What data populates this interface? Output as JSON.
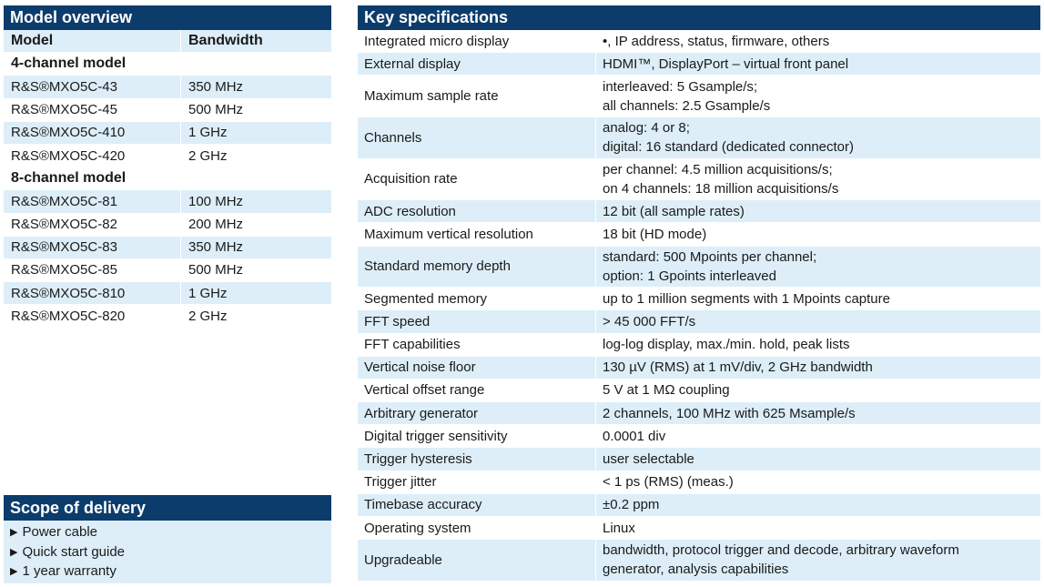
{
  "models": {
    "title": "Model overview",
    "col_model": "Model",
    "col_bandwidth": "Bandwidth",
    "group4": "4-channel model",
    "rows4": [
      {
        "model": "R&S®MXO5C-43",
        "bw": "350 MHz"
      },
      {
        "model": "R&S®MXO5C-45",
        "bw": "500 MHz"
      },
      {
        "model": "R&S®MXO5C-410",
        "bw": "1 GHz"
      },
      {
        "model": "R&S®MXO5C-420",
        "bw": "2 GHz"
      }
    ],
    "group8": "8-channel model",
    "rows8": [
      {
        "model": "R&S®MXO5C-81",
        "bw": "100 MHz"
      },
      {
        "model": "R&S®MXO5C-82",
        "bw": "200 MHz"
      },
      {
        "model": "R&S®MXO5C-83",
        "bw": "350 MHz"
      },
      {
        "model": "R&S®MXO5C-85",
        "bw": "500 MHz"
      },
      {
        "model": "R&S®MXO5C-810",
        "bw": "1 GHz"
      },
      {
        "model": "R&S®MXO5C-820",
        "bw": "2 GHz"
      }
    ]
  },
  "scope": {
    "title": "Scope of delivery",
    "items": [
      "Power cable",
      "Quick start guide",
      "1 year warranty"
    ]
  },
  "specs": {
    "title": "Key specifications",
    "rows": [
      {
        "k": "Integrated micro display",
        "v": "•, IP address, status, firmware, others"
      },
      {
        "k": "External display",
        "v": "HDMI™, DisplayPort – virtual front panel"
      },
      {
        "k": "Maximum sample rate",
        "v": "interleaved: 5 Gsample/s;\nall channels: 2.5 Gsample/s"
      },
      {
        "k": "Channels",
        "v": "analog: 4 or 8;\ndigital: 16 standard (dedicated connector)"
      },
      {
        "k": "Acquisition rate",
        "v": "per channel: 4.5 million acquisitions/s;\non 4 channels: 18 million acquisitions/s"
      },
      {
        "k": "ADC resolution",
        "v": "12 bit (all sample rates)"
      },
      {
        "k": "Maximum vertical resolution",
        "v": "18 bit (HD mode)"
      },
      {
        "k": "Standard memory depth",
        "v": "standard: 500 Mpoints per channel;\noption: 1 Gpoints interleaved"
      },
      {
        "k": "Segmented memory",
        "v": "up to 1 million segments with 1 Mpoints capture"
      },
      {
        "k": "FFT speed",
        "v": "> 45 000 FFT/s"
      },
      {
        "k": "FFT capabilities",
        "v": "log-log display, max./min. hold, peak lists"
      },
      {
        "k": "Vertical noise floor",
        "v": "130 µV (RMS) at 1 mV/div, 2 GHz bandwidth"
      },
      {
        "k": "Vertical offset range",
        "v": "5 V at 1 MΩ coupling"
      },
      {
        "k": "Arbitrary generator",
        "v": "2 channels, 100 MHz with 625 Msample/s"
      },
      {
        "k": "Digital trigger sensitivity",
        "v": "0.0001 div"
      },
      {
        "k": "Trigger hysteresis",
        "v": "user selectable"
      },
      {
        "k": "Trigger jitter",
        "v": "< 1 ps (RMS) (meas.)"
      },
      {
        "k": "Timebase accuracy",
        "v": "±0.2 ppm"
      },
      {
        "k": "Operating system",
        "v": "Linux"
      },
      {
        "k": "Upgradeable",
        "v": "bandwidth, protocol trigger and decode, arbitrary waveform\ngenerator, analysis capabilities"
      }
    ]
  }
}
